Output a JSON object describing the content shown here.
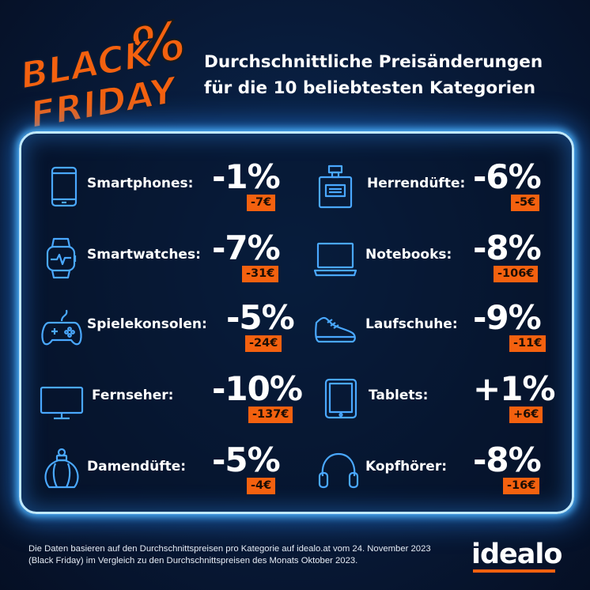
{
  "logo": {
    "line1": "BLACK",
    "line2": "FRIDAY",
    "symbol": "%",
    "color": "#f4610f"
  },
  "headline": {
    "line1": "Durchschnittliche Preisänderungen",
    "line2": "für die 10 beliebtesten Kategorien"
  },
  "categories": [
    {
      "label": "Smartphones:",
      "percent": "-1%",
      "euro": "-7€",
      "icon": "smartphone-icon"
    },
    {
      "label": "Smartwatches:",
      "percent": "-7%",
      "euro": "-31€",
      "icon": "smartwatch-icon"
    },
    {
      "label": "Spielekonsolen:",
      "percent": "-5%",
      "euro": "-24€",
      "icon": "gamepad-icon"
    },
    {
      "label": "Fernseher:",
      "percent": "-10%",
      "euro": "-137€",
      "icon": "tv-icon"
    },
    {
      "label": "Damendüfte:",
      "percent": "-5%",
      "euro": "-4€",
      "icon": "perfume-bottle-icon"
    },
    {
      "label": "Herrendüfte:",
      "percent": "-6%",
      "euro": "-5€",
      "icon": "cologne-bottle-icon"
    },
    {
      "label": "Notebooks:",
      "percent": "-8%",
      "euro": "-106€",
      "icon": "laptop-icon"
    },
    {
      "label": "Laufschuhe:",
      "percent": "-9%",
      "euro": "-11€",
      "icon": "running-shoe-icon"
    },
    {
      "label": "Tablets:",
      "percent": "+1%",
      "euro": "+6€",
      "icon": "tablet-icon"
    },
    {
      "label": "Kopfhörer:",
      "percent": "-8%",
      "euro": "-16€",
      "icon": "headphones-icon"
    }
  ],
  "footnote": "Die Daten basieren auf den Durchschnittspreisen pro Kategorie auf idealo.at vom 24. November 2023 (Black Friday) im Vergleich zu den Durchschnittspreisen des Monats Oktober 2023.",
  "brand": {
    "name": "idealo",
    "accent": "#f4610f"
  },
  "colors": {
    "background": "#081a38",
    "neon_frame": "#4fb6ff",
    "accent": "#f4610f"
  }
}
